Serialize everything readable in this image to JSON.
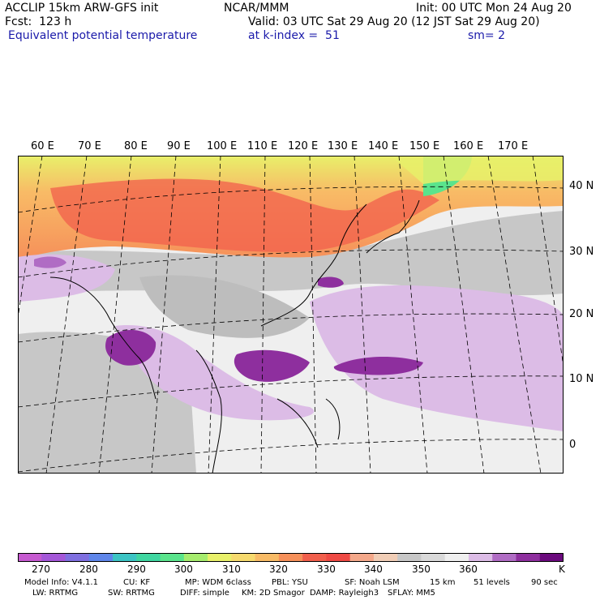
{
  "header": {
    "model": "ACCLIP 15km ARW-GFS init",
    "org": "NCAR/MMM",
    "init": "Init: 00 UTC Mon 24 Aug 20",
    "fcst": "Fcst:  123 h",
    "valid": "Valid: 03 UTC Sat 29 Aug 20 (12 JST Sat 29 Aug 20)",
    "variable": "Equivalent potential temperature",
    "level": "at k-index =  51",
    "smooth": "sm= 2"
  },
  "map": {
    "lon_labels": [
      "60 E",
      "70 E",
      "80 E",
      "90 E",
      "100 E",
      "110 E",
      "120 E",
      "130 E",
      "140 E",
      "150 E",
      "160 E",
      "170 E"
    ],
    "lat_labels": [
      "40 N",
      "30 N",
      "20 N",
      "10 N",
      "0"
    ]
  },
  "colorbar": {
    "colors": [
      "#c65ad0",
      "#a457d8",
      "#7f6fe0",
      "#5f86ea",
      "#3cc4c4",
      "#3fd6a0",
      "#5ae48c",
      "#a6ec6e",
      "#e8f06a",
      "#f6da6e",
      "#f8bb66",
      "#f6905a",
      "#f15f4c",
      "#ee4a44",
      "#f4a88a",
      "#f0cdb6",
      "#c7c7c7",
      "#d9d9d9",
      "#efefef",
      "#dcbce6",
      "#b06cc4",
      "#8e2f9e",
      "#6b0a7d"
    ],
    "ticks": [
      "270",
      "280",
      "290",
      "300",
      "310",
      "320",
      "330",
      "340",
      "350",
      "360"
    ],
    "unit": "K"
  },
  "footer": {
    "line1": [
      "Model Info: V4.1.1",
      "CU: KF",
      "MP: WDM 6class",
      "PBL: YSU",
      "SF: Noah LSM",
      "15 km",
      "51 levels",
      "90 sec"
    ],
    "line2": [
      "LW: RRTMG",
      "SW: RRTMG",
      "DIFF: simple",
      "KM: 2D Smagor",
      "DAMP: Rayleigh3",
      "SFLAY: MM5"
    ]
  }
}
